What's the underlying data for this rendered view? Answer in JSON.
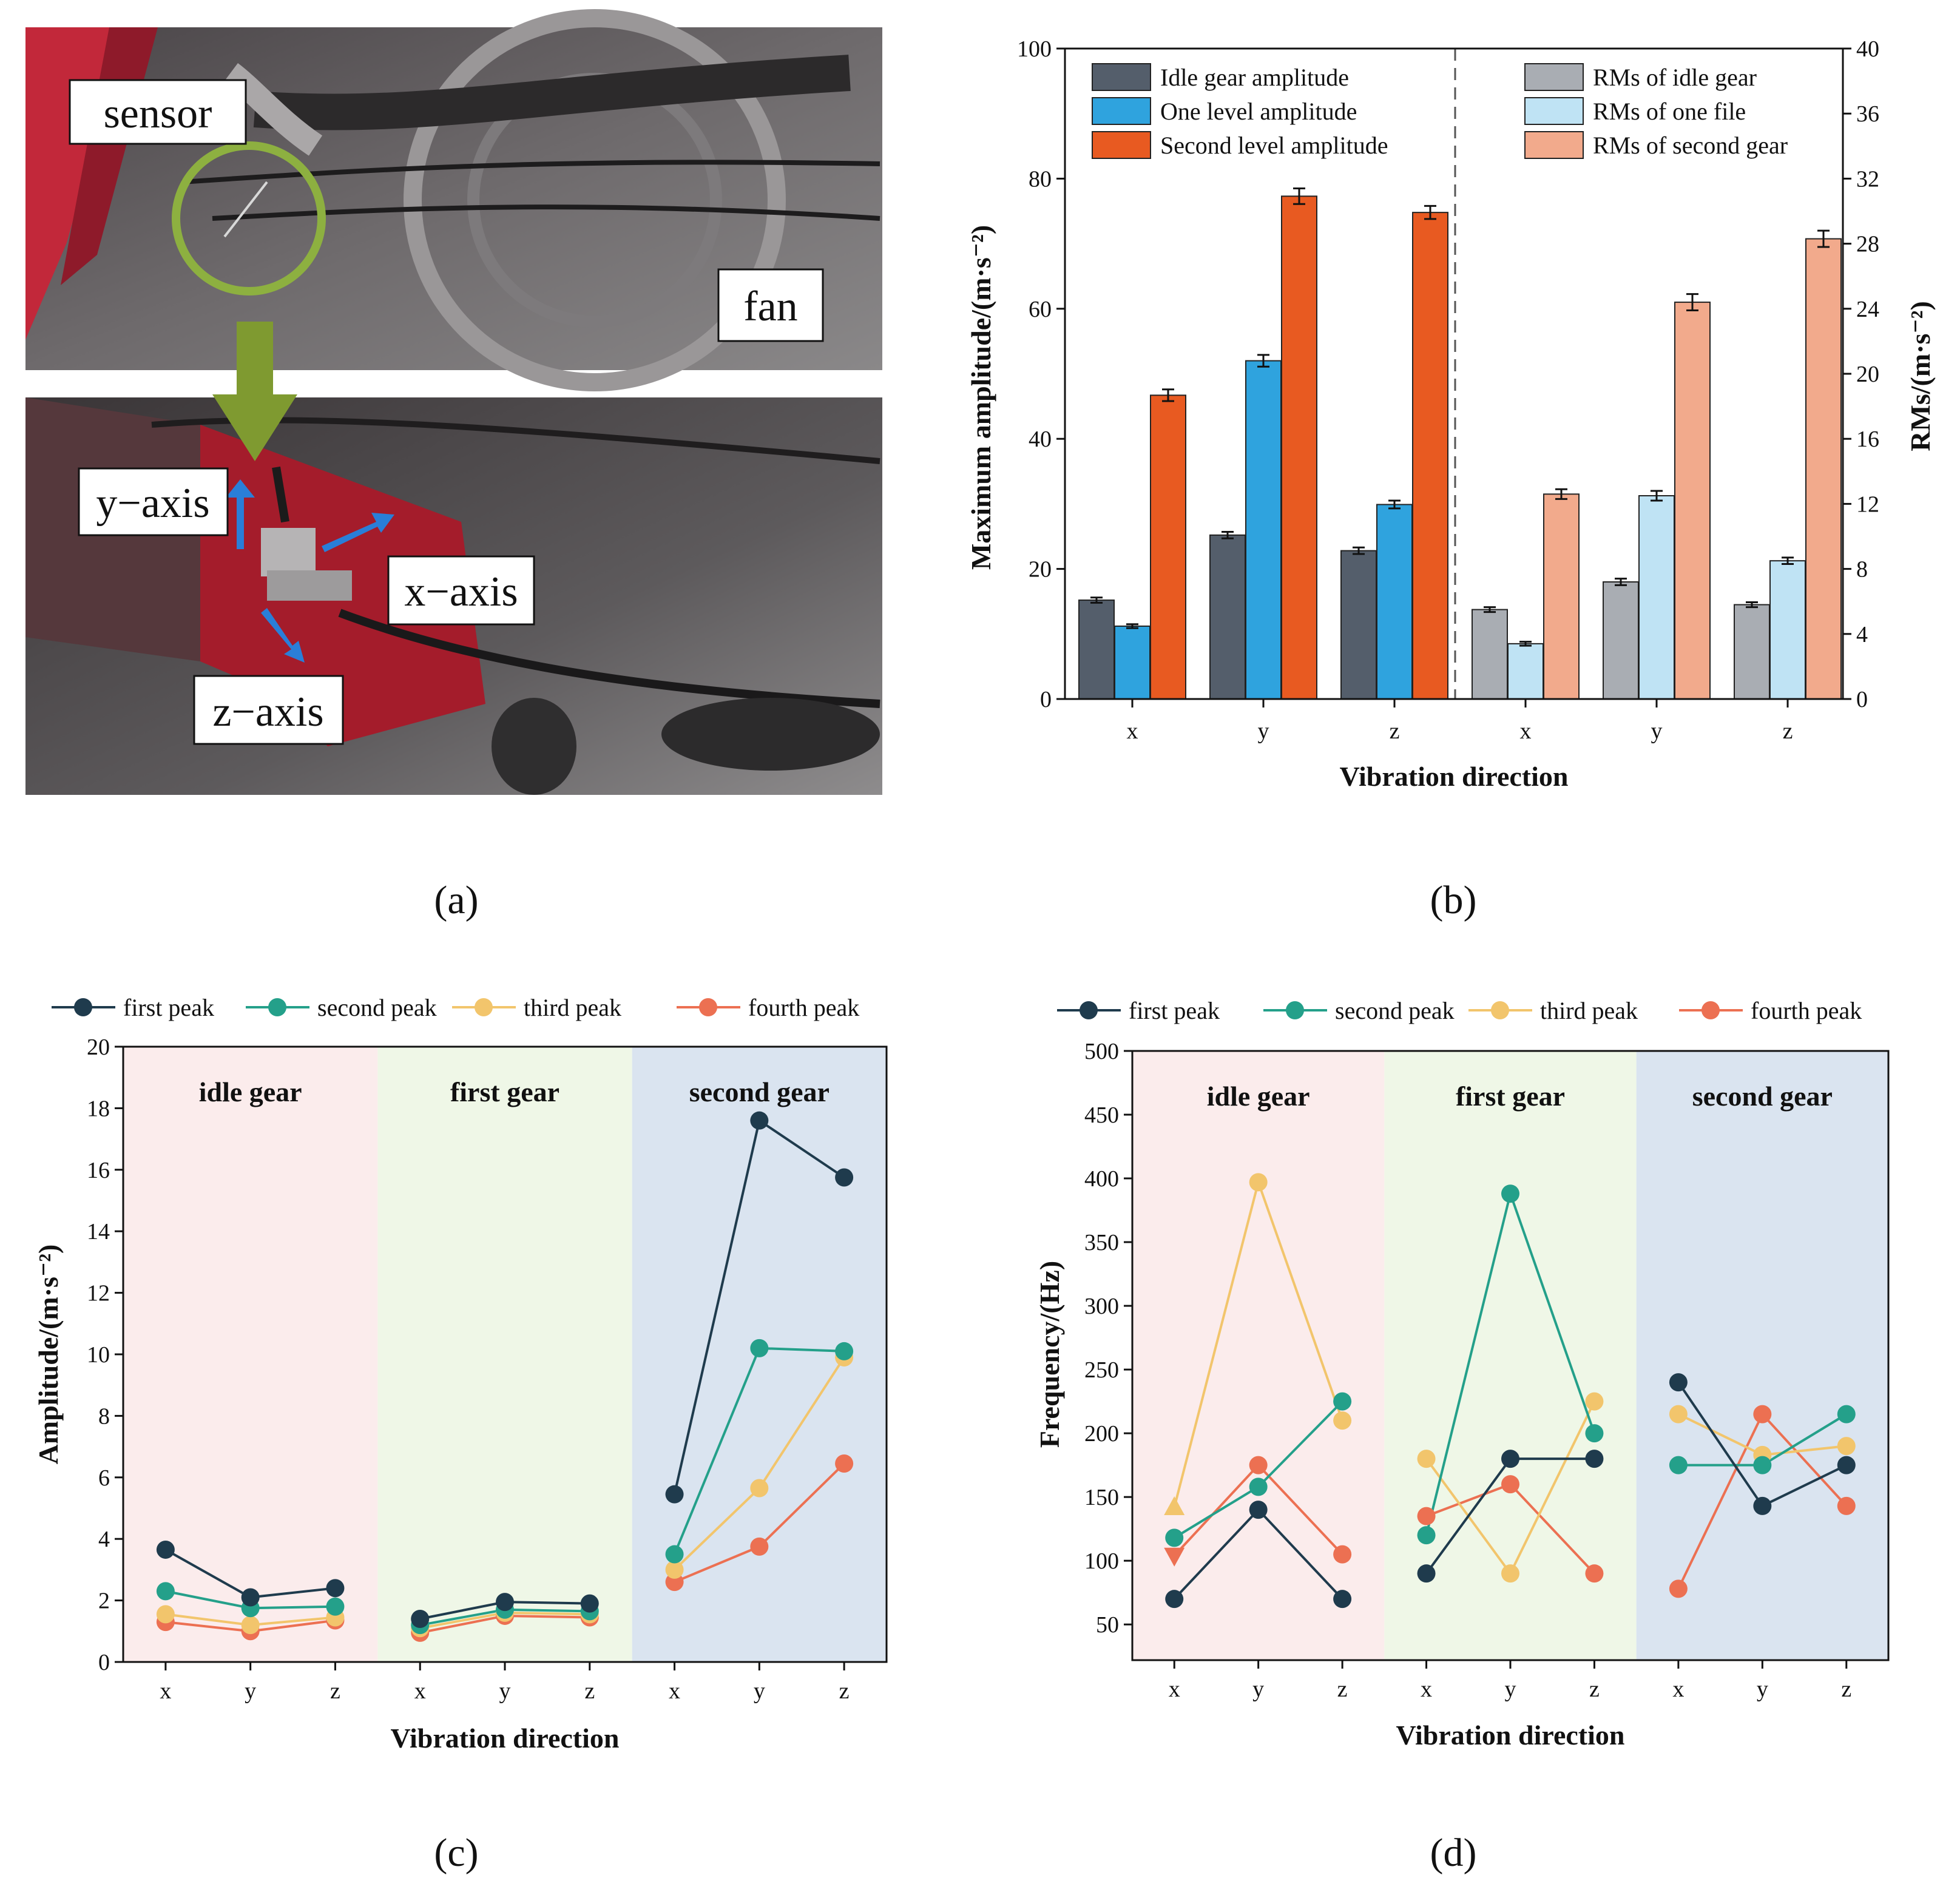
{
  "panels": {
    "a": "(a)",
    "b": "(b)",
    "c": "(c)",
    "d": "(d)"
  },
  "photo": {
    "sensor_label": "sensor",
    "fan_label": "fan",
    "y_axis_label": "y−axis",
    "x_axis_label": "x−axis",
    "z_axis_label": "z−axis"
  },
  "colors": {
    "idle_amp": "#545e6b",
    "one_amp": "#2fa3de",
    "second_amp": "#e85a21",
    "idle_rms": "#a9adb3",
    "one_rms": "#bfe3f4",
    "second_rms": "#f2aa8c",
    "first_peak": "#1f3b4d",
    "second_peak": "#24a08a",
    "third_peak": "#f2c56c",
    "fourth_peak": "#ec7052",
    "bg_idle": "#fbecec",
    "bg_first": "#eff7e7",
    "bg_second": "#dae4f0"
  },
  "chart_data": [
    {
      "id": "b",
      "type": "bar",
      "groups": [
        "x",
        "y",
        "z",
        "x",
        "y",
        "z"
      ],
      "xlabel": "Vibration direction",
      "ylabel_left": "Maximum amplitude/(m·s⁻²)",
      "ylabel_right": "RMs/(m·s⁻²)",
      "ylim_left": [
        0,
        100
      ],
      "ylim_right": [
        0,
        40
      ],
      "yticks_left": [
        "0",
        "20",
        "40",
        "60",
        "80",
        "100"
      ],
      "yticks_right": [
        "0",
        "4",
        "8",
        "12",
        "16",
        "20",
        "24",
        "28",
        "32",
        "36",
        "40"
      ],
      "amplitude_series": [
        {
          "name": "Idle gear amplitude",
          "values": [
            15.2,
            25.2,
            22.8
          ],
          "errors": [
            0.4,
            0.5,
            0.5
          ]
        },
        {
          "name": "One level amplitude",
          "values": [
            11.2,
            52.0,
            29.9
          ],
          "errors": [
            0.3,
            0.9,
            0.6
          ]
        },
        {
          "name": "Second level amplitude",
          "values": [
            46.7,
            77.3,
            74.8
          ],
          "errors": [
            0.9,
            1.2,
            1.0
          ]
        }
      ],
      "rms_series": [
        {
          "name": "RMs of idle gear",
          "values": [
            5.5,
            7.2,
            5.8
          ],
          "errors": [
            0.15,
            0.2,
            0.15
          ]
        },
        {
          "name": "RMs of one file",
          "values": [
            3.4,
            12.5,
            8.5
          ],
          "errors": [
            0.12,
            0.3,
            0.2
          ]
        },
        {
          "name": "RMs of second gear",
          "values": [
            12.6,
            24.4,
            28.3
          ],
          "errors": [
            0.3,
            0.5,
            0.5
          ]
        }
      ]
    },
    {
      "id": "c",
      "type": "line",
      "xlabel": "Vibration direction",
      "ylabel": "Amplitude/(m·s⁻²)",
      "ylim": [
        0,
        20
      ],
      "yticks": [
        "0",
        "2",
        "4",
        "6",
        "8",
        "10",
        "12",
        "14",
        "16",
        "18",
        "20"
      ],
      "x": [
        "x",
        "y",
        "z",
        "x",
        "y",
        "z",
        "x",
        "y",
        "z"
      ],
      "gears": [
        "idle gear",
        "first gear",
        "second gear"
      ],
      "series": [
        {
          "name": "first peak",
          "values": [
            3.65,
            2.1,
            2.4,
            1.4,
            1.95,
            1.9,
            5.45,
            17.6,
            15.75
          ]
        },
        {
          "name": "second peak",
          "values": [
            2.3,
            1.75,
            1.8,
            1.2,
            1.7,
            1.65,
            3.5,
            10.2,
            10.1
          ]
        },
        {
          "name": "third peak",
          "values": [
            1.55,
            1.2,
            1.45,
            1.1,
            1.6,
            1.55,
            3.0,
            5.65,
            9.9
          ]
        },
        {
          "name": "fourth peak",
          "values": [
            1.3,
            1.0,
            1.35,
            0.95,
            1.5,
            1.45,
            2.6,
            3.75,
            6.45
          ]
        }
      ]
    },
    {
      "id": "d",
      "type": "line",
      "xlabel": "Vibration direction",
      "ylabel": "Frequency/(Hz)",
      "ylim": [
        22,
        500
      ],
      "yticks": [
        "50",
        "100",
        "150",
        "200",
        "250",
        "300",
        "350",
        "400",
        "450",
        "500"
      ],
      "x": [
        "x",
        "y",
        "z",
        "x",
        "y",
        "z",
        "x",
        "y",
        "z"
      ],
      "gears": [
        "idle gear",
        "first gear",
        "second gear"
      ],
      "series": [
        {
          "name": "first peak",
          "values": [
            70,
            140,
            70,
            90,
            180,
            180,
            240,
            143,
            175
          ]
        },
        {
          "name": "second peak",
          "values": [
            118,
            158,
            225,
            120,
            388,
            200,
            175,
            175,
            215
          ]
        },
        {
          "name": "third peak",
          "values": [
            142,
            397,
            210,
            180,
            90,
            225,
            215,
            183,
            190
          ]
        },
        {
          "name": "fourth peak",
          "values": [
            104,
            175,
            105,
            135,
            160,
            90,
            78,
            215,
            143
          ]
        }
      ]
    }
  ]
}
